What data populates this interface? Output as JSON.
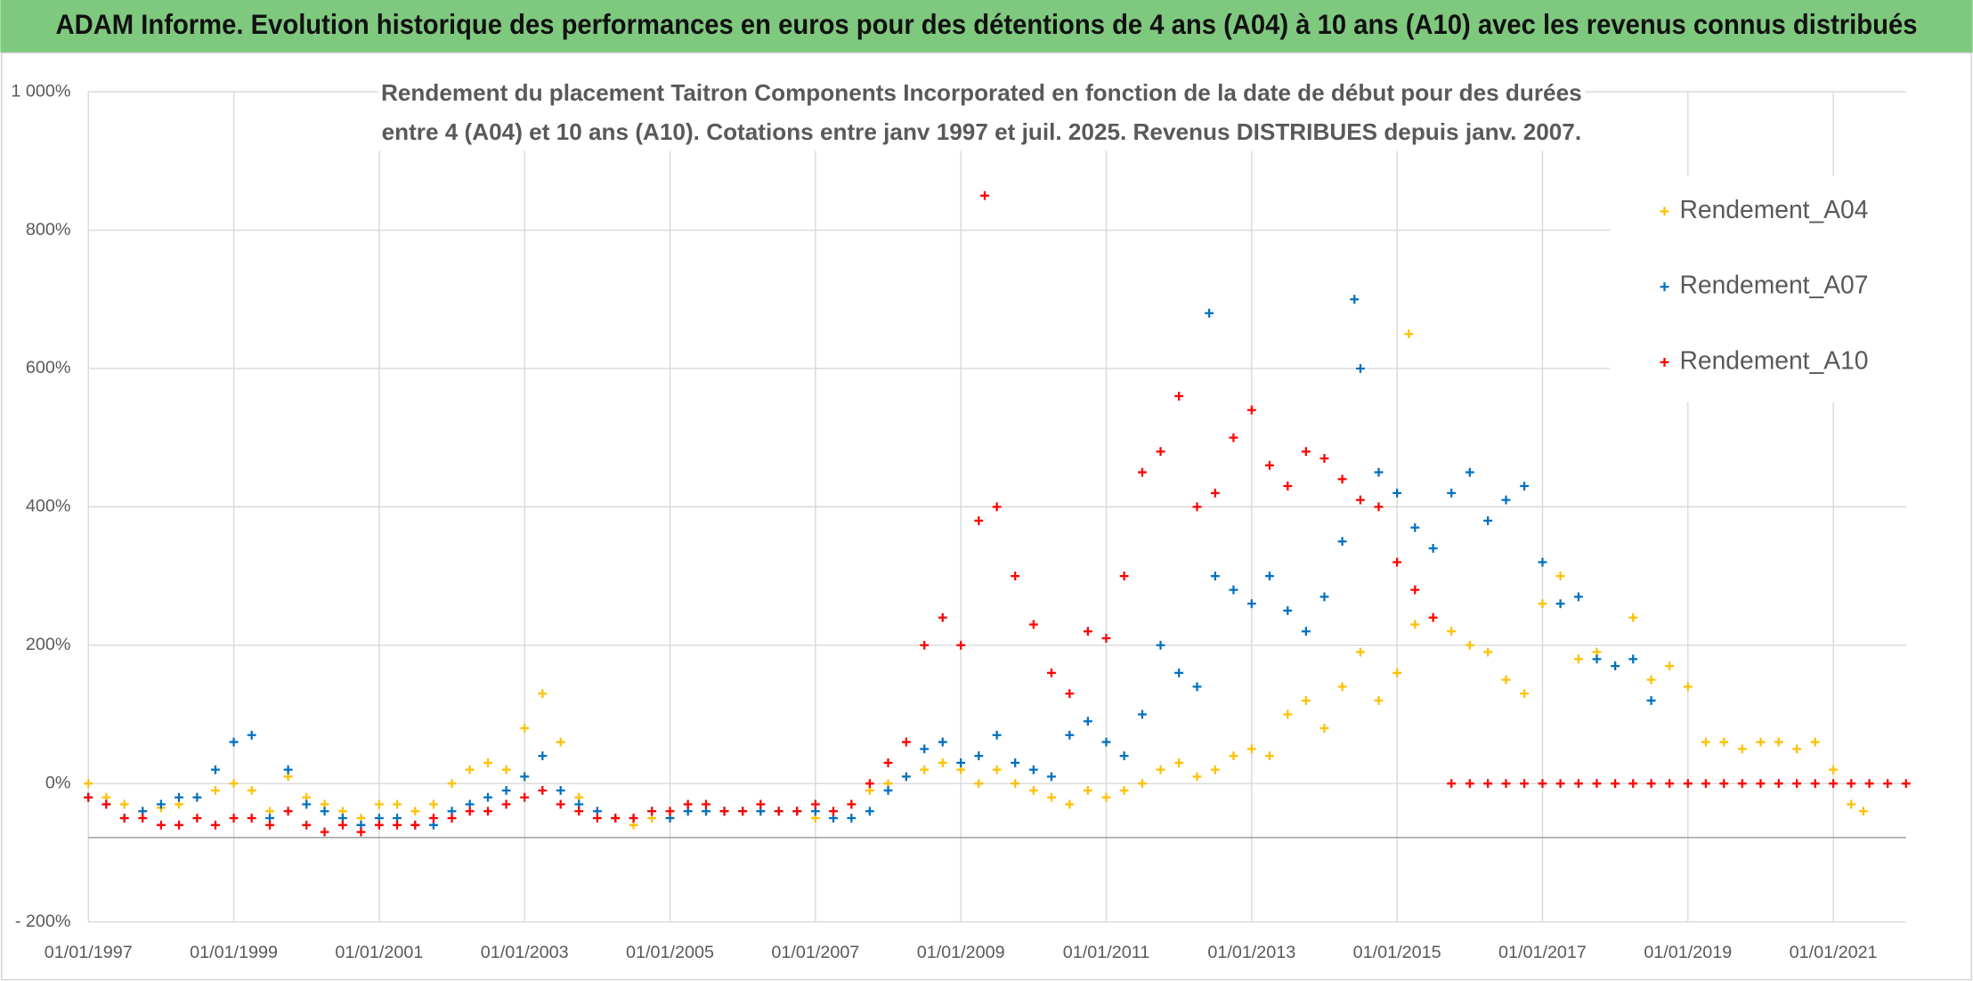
{
  "chart_data": {
    "type": "scatter",
    "header": "ADAM Informe. Evolution historique des performances en euros pour des détentions de 4 ans (A04) à 10 ans (A10) avec les revenus connus distribués",
    "title": "Rendement du placement Taitron Components Incorporated en fonction de la date de début pour des durées entre 4 (A04) et 10 ans (A10). Cotations entre janv 1997 et juil. 2025. Revenus DISTRIBUES depuis janv. 2007.",
    "xlim": [
      "1997-01-01",
      "2022-01-01"
    ],
    "xticks": [
      {
        "value": "1997-01-01",
        "label": "01/01/1997"
      },
      {
        "value": "1999-01-01",
        "label": "01/01/1999"
      },
      {
        "value": "2001-01-01",
        "label": "01/01/2001"
      },
      {
        "value": "2003-01-01",
        "label": "01/01/2003"
      },
      {
        "value": "2005-01-01",
        "label": "01/01/2005"
      },
      {
        "value": "2007-01-01",
        "label": "01/01/2007"
      },
      {
        "value": "2009-01-01",
        "label": "01/01/2009"
      },
      {
        "value": "2011-01-01",
        "label": "01/01/2011"
      },
      {
        "value": "2013-01-01",
        "label": "01/01/2013"
      },
      {
        "value": "2015-01-01",
        "label": "01/01/2015"
      },
      {
        "value": "2017-01-01",
        "label": "01/01/2017"
      },
      {
        "value": "2019-01-01",
        "label": "01/01/2019"
      },
      {
        "value": "2021-01-01",
        "label": "01/01/2021"
      }
    ],
    "ylim": [
      -200,
      1000
    ],
    "yticks": [
      {
        "value": -200,
        "label": "- 200%"
      },
      {
        "value": 0,
        "label": "0%"
      },
      {
        "value": 200,
        "label": "200%"
      },
      {
        "value": 400,
        "label": "400%"
      },
      {
        "value": 600,
        "label": "600%"
      },
      {
        "value": 800,
        "label": "800%"
      },
      {
        "value": 1000,
        "label": "1 000%"
      }
    ],
    "hline": -78,
    "grid": true,
    "legend": "right",
    "marker": "+",
    "series": [
      {
        "name": "Rendement_A04",
        "color": "#ffc000",
        "x": [
          "1997-01-01",
          "1997-04-01",
          "1997-07-01",
          "1997-10-01",
          "1998-01-01",
          "1998-04-01",
          "1998-07-01",
          "1998-10-01",
          "1999-01-01",
          "1999-04-01",
          "1999-07-01",
          "1999-10-01",
          "2000-01-01",
          "2000-04-01",
          "2000-07-01",
          "2000-10-01",
          "2001-01-01",
          "2001-04-01",
          "2001-07-01",
          "2001-10-01",
          "2002-01-01",
          "2002-04-01",
          "2002-07-01",
          "2002-10-01",
          "2003-01-01",
          "2003-04-01",
          "2003-07-01",
          "2003-10-01",
          "2004-01-01",
          "2004-04-01",
          "2004-07-01",
          "2004-10-01",
          "2005-01-01",
          "2005-04-01",
          "2005-07-01",
          "2005-10-01",
          "2006-01-01",
          "2006-04-01",
          "2006-07-01",
          "2006-10-01",
          "2007-01-01",
          "2007-04-01",
          "2007-07-01",
          "2007-10-01",
          "2008-01-01",
          "2008-04-01",
          "2008-07-01",
          "2008-10-01",
          "2009-01-01",
          "2009-04-01",
          "2009-07-01",
          "2009-10-01",
          "2010-01-01",
          "2010-04-01",
          "2010-07-01",
          "2010-10-01",
          "2011-01-01",
          "2011-04-01",
          "2011-07-01",
          "2011-10-01",
          "2012-01-01",
          "2012-04-01",
          "2012-07-01",
          "2012-10-01",
          "2013-01-01",
          "2013-04-01",
          "2013-07-01",
          "2013-10-01",
          "2014-01-01",
          "2014-04-01",
          "2014-07-01",
          "2014-10-01",
          "2015-01-01",
          "2015-03-01",
          "2015-04-01",
          "2015-07-01",
          "2015-10-01",
          "2016-01-01",
          "2016-04-01",
          "2016-07-01",
          "2016-10-01",
          "2017-01-01",
          "2017-04-01",
          "2017-07-01",
          "2017-10-01",
          "2018-01-01",
          "2018-04-01",
          "2018-07-01",
          "2018-10-01",
          "2019-01-01",
          "2019-04-01",
          "2019-07-01",
          "2019-10-01",
          "2020-01-01",
          "2020-04-01",
          "2020-07-01",
          "2020-10-01",
          "2021-01-01",
          "2021-04-01",
          "2021-06-01"
        ],
        "values": [
          0,
          -20,
          -30,
          -40,
          -35,
          -30,
          -20,
          -10,
          0,
          -10,
          -40,
          10,
          -20,
          -30,
          -40,
          -50,
          -30,
          -30,
          -40,
          -30,
          0,
          20,
          30,
          20,
          80,
          130,
          60,
          -20,
          -40,
          -50,
          -60,
          -50,
          -50,
          -40,
          -40,
          -40,
          -40,
          -40,
          -40,
          -40,
          -50,
          -50,
          -30,
          -10,
          0,
          10,
          20,
          30,
          20,
          0,
          20,
          0,
          -10,
          -20,
          -30,
          -10,
          -20,
          -10,
          0,
          20,
          30,
          10,
          20,
          40,
          50,
          40,
          100,
          120,
          80,
          140,
          190,
          120,
          160,
          650,
          230,
          240,
          220,
          200,
          190,
          150,
          130,
          260,
          300,
          180,
          190,
          170,
          240,
          150,
          170,
          140,
          60,
          60,
          50,
          60,
          60,
          50,
          60,
          20,
          -30,
          -40
        ]
      },
      {
        "name": "Rendement_A07",
        "color": "#0070c0",
        "x": [
          "1997-01-01",
          "1997-04-01",
          "1997-07-01",
          "1997-10-01",
          "1998-01-01",
          "1998-04-01",
          "1998-07-01",
          "1998-10-01",
          "1999-01-01",
          "1999-04-01",
          "1999-07-01",
          "1999-10-01",
          "2000-01-01",
          "2000-04-01",
          "2000-07-01",
          "2000-10-01",
          "2001-01-01",
          "2001-04-01",
          "2001-07-01",
          "2001-10-01",
          "2002-01-01",
          "2002-04-01",
          "2002-07-01",
          "2002-10-01",
          "2003-01-01",
          "2003-04-01",
          "2003-07-01",
          "2003-10-01",
          "2004-01-01",
          "2004-04-01",
          "2004-07-01",
          "2004-10-01",
          "2005-01-01",
          "2005-04-01",
          "2005-07-01",
          "2005-10-01",
          "2006-01-01",
          "2006-04-01",
          "2006-07-01",
          "2006-10-01",
          "2007-01-01",
          "2007-04-01",
          "2007-07-01",
          "2007-10-01",
          "2008-01-01",
          "2008-04-01",
          "2008-07-01",
          "2008-10-01",
          "2009-01-01",
          "2009-04-01",
          "2009-07-01",
          "2009-10-01",
          "2010-01-01",
          "2010-04-01",
          "2010-07-01",
          "2010-10-01",
          "2011-01-01",
          "2011-04-01",
          "2011-07-01",
          "2011-10-01",
          "2012-01-01",
          "2012-04-01",
          "2012-06-01",
          "2012-07-01",
          "2012-10-01",
          "2013-01-01",
          "2013-04-01",
          "2013-07-01",
          "2013-10-01",
          "2014-01-01",
          "2014-04-01",
          "2014-06-01",
          "2014-07-01",
          "2014-10-01",
          "2015-01-01",
          "2015-04-01",
          "2015-07-01",
          "2015-10-01",
          "2016-01-01",
          "2016-04-01",
          "2016-07-01",
          "2016-10-01",
          "2017-01-01",
          "2017-04-01",
          "2017-07-01",
          "2017-10-01",
          "2018-01-01",
          "2018-04-01",
          "2018-07-01"
        ],
        "values": [
          -20,
          -30,
          -50,
          -40,
          -30,
          -20,
          -20,
          20,
          60,
          70,
          -50,
          20,
          -30,
          -40,
          -50,
          -60,
          -50,
          -50,
          -60,
          -60,
          -40,
          -30,
          -20,
          -10,
          10,
          40,
          -10,
          -30,
          -40,
          -50,
          -50,
          -40,
          -50,
          -40,
          -40,
          -40,
          -40,
          -40,
          -40,
          -40,
          -40,
          -50,
          -50,
          -40,
          -10,
          10,
          50,
          60,
          30,
          40,
          70,
          30,
          20,
          10,
          70,
          90,
          60,
          40,
          100,
          200,
          160,
          140,
          680,
          300,
          280,
          260,
          300,
          250,
          220,
          270,
          350,
          700,
          600,
          450,
          420,
          370,
          340,
          420,
          450,
          380,
          410,
          430,
          320,
          260,
          270,
          180,
          170,
          180,
          120
        ]
      },
      {
        "name": "Rendement_A10",
        "color": "#ff0000",
        "x": [
          "1997-01-01",
          "1997-04-01",
          "1997-07-01",
          "1997-10-01",
          "1998-01-01",
          "1998-04-01",
          "1998-07-01",
          "1998-10-01",
          "1999-01-01",
          "1999-04-01",
          "1999-07-01",
          "1999-10-01",
          "2000-01-01",
          "2000-04-01",
          "2000-07-01",
          "2000-10-01",
          "2001-01-01",
          "2001-04-01",
          "2001-07-01",
          "2001-10-01",
          "2002-01-01",
          "2002-04-01",
          "2002-07-01",
          "2002-10-01",
          "2003-01-01",
          "2003-04-01",
          "2003-07-01",
          "2003-10-01",
          "2004-01-01",
          "2004-04-01",
          "2004-07-01",
          "2004-10-01",
          "2005-01-01",
          "2005-04-01",
          "2005-07-01",
          "2005-10-01",
          "2006-01-01",
          "2006-04-01",
          "2006-07-01",
          "2006-10-01",
          "2007-01-01",
          "2007-04-01",
          "2007-07-01",
          "2007-10-01",
          "2008-01-01",
          "2008-04-01",
          "2008-07-01",
          "2008-10-01",
          "2009-01-01",
          "2009-04-01",
          "2009-05-01",
          "2009-07-01",
          "2009-10-01",
          "2010-01-01",
          "2010-04-01",
          "2010-07-01",
          "2010-10-01",
          "2011-01-01",
          "2011-04-01",
          "2011-07-01",
          "2011-10-01",
          "2012-01-01",
          "2012-04-01",
          "2012-07-01",
          "2012-10-01",
          "2013-01-01",
          "2013-04-01",
          "2013-07-01",
          "2013-10-01",
          "2014-01-01",
          "2014-04-01",
          "2014-07-01",
          "2014-10-01",
          "2015-01-01",
          "2015-04-01",
          "2015-07-01",
          "2015-10-01",
          "2016-01-01",
          "2016-04-01",
          "2016-07-01",
          "2016-10-01",
          "2017-01-01",
          "2017-04-01",
          "2017-07-01",
          "2017-10-01",
          "2018-01-01",
          "2018-04-01",
          "2018-07-01",
          "2018-10-01",
          "2019-01-01",
          "2019-04-01",
          "2019-07-01",
          "2019-10-01",
          "2020-01-01",
          "2020-04-01",
          "2020-07-01",
          "2020-10-01",
          "2021-01-01",
          "2021-04-01",
          "2021-07-01",
          "2021-10-01",
          "2022-01-01"
        ],
        "values": [
          -20,
          -30,
          -50,
          -50,
          -60,
          -60,
          -50,
          -60,
          -50,
          -50,
          -60,
          -40,
          -60,
          -70,
          -60,
          -70,
          -60,
          -60,
          -60,
          -50,
          -50,
          -40,
          -40,
          -30,
          -20,
          -10,
          -30,
          -40,
          -50,
          -50,
          -50,
          -40,
          -40,
          -30,
          -30,
          -40,
          -40,
          -30,
          -40,
          -40,
          -30,
          -40,
          -30,
          0,
          30,
          60,
          200,
          240,
          200,
          380,
          850,
          400,
          300,
          230,
          160,
          130,
          220,
          210,
          300,
          450,
          480,
          560,
          400,
          420,
          500,
          540,
          460,
          430,
          480,
          470,
          440,
          410,
          400,
          320,
          280,
          240,
          0,
          0,
          0,
          0,
          0,
          0,
          0,
          0,
          0,
          0,
          0,
          0,
          0,
          0,
          0,
          0,
          0,
          0,
          0,
          0,
          0,
          0,
          0,
          0,
          0,
          0
        ]
      }
    ]
  }
}
